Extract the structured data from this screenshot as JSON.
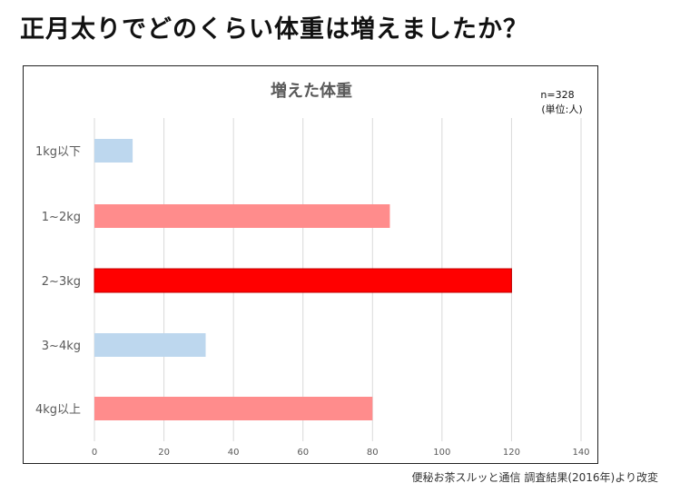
{
  "page_title": "正月太りでどのくらい体重は増えましたか？",
  "source": "便秘お茶スルッと通信 調査結果(2016年)より改変",
  "chart_data": {
    "type": "bar",
    "orientation": "horizontal",
    "title": "増えた体重",
    "annotation_n": "n=328",
    "annotation_unit": "(単位:人)",
    "categories": [
      "1kg以下",
      "1~2kg",
      "2~3kg",
      "3~4kg",
      "4kg以上"
    ],
    "values": [
      11,
      85,
      120,
      32,
      80
    ],
    "colors": [
      "#bdd7ee",
      "#ff8c8c",
      "#ff0000",
      "#bdd7ee",
      "#ff8c8c"
    ],
    "xlim": [
      0,
      140
    ],
    "xticks": [
      "0",
      "20",
      "40",
      "60",
      "80",
      "100",
      "120",
      "140"
    ],
    "grid": true,
    "xlabel": "",
    "ylabel": ""
  }
}
